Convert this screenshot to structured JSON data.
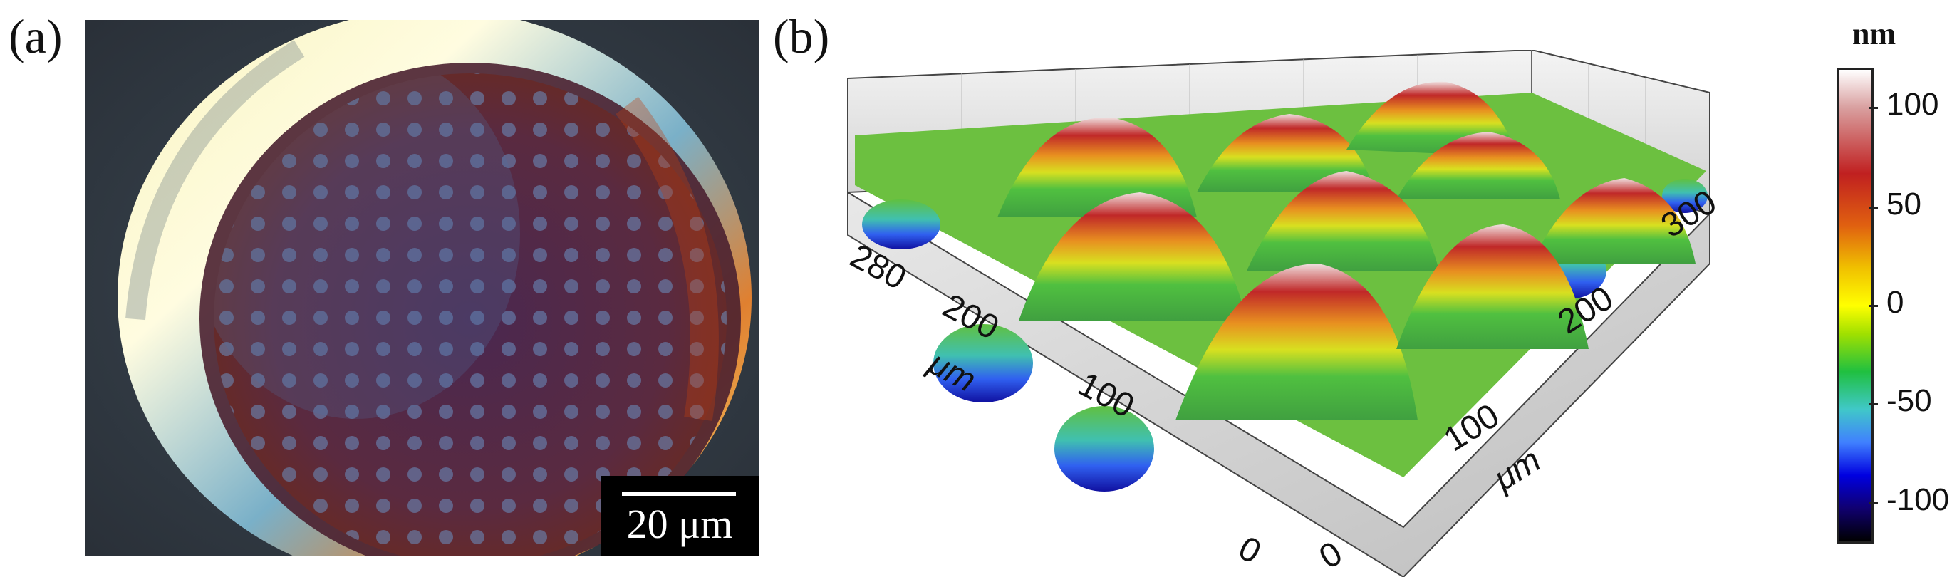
{
  "panels": {
    "a": {
      "label": "(a)",
      "scale_bar": "20 μm"
    },
    "b": {
      "label": "(b)",
      "x_axis": {
        "ticks": [
          "0",
          "100",
          "200",
          "300"
        ],
        "unit": "μm"
      },
      "y_axis": {
        "ticks": [
          "0",
          "100",
          "200",
          "280"
        ],
        "unit": "μm"
      },
      "colorbar": {
        "unit": "nm",
        "ticks": [
          "100",
          "50",
          "0",
          "-50",
          "-100"
        ],
        "colors": [
          "#ffffff",
          "#c02020",
          "#ffff00",
          "#4080ff",
          "#000000"
        ]
      }
    }
  }
}
